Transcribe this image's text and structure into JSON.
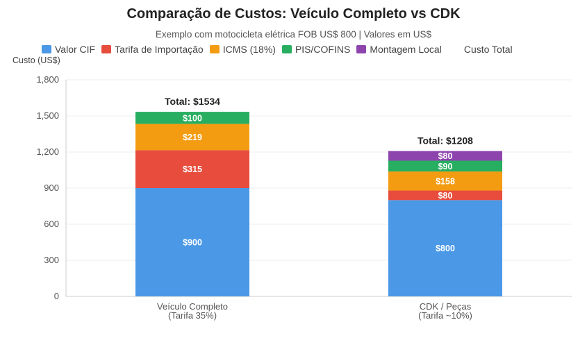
{
  "chart_data": {
    "type": "bar",
    "stacked": true,
    "title": "Comparação de Custos: Veículo Completo vs CDK",
    "subtitle": "Exemplo com motocicleta elétrica FOB US$ 800 | Valores em US$",
    "ylabel": "Custo (US$)",
    "ylim": [
      0,
      1800
    ],
    "yticks": [
      "0",
      "300",
      "600",
      "900",
      "1,200",
      "1,500",
      "1,800"
    ],
    "grid": true,
    "legend_position": "top",
    "categories": [
      [
        "Veículo Completo",
        "(Tarifa 35%)"
      ],
      [
        "CDK / Peças",
        "(Tarifa ~10%)"
      ]
    ],
    "series": [
      {
        "name": "Valor CIF",
        "color": "#4a98e6",
        "values": [
          900,
          800
        ],
        "labels": [
          "$900",
          "$800"
        ]
      },
      {
        "name": "Tarifa de Importação",
        "color": "#e74c3c",
        "values": [
          315,
          80
        ],
        "labels": [
          "$315",
          "$80"
        ]
      },
      {
        "name": "ICMS (18%)",
        "color": "#f39c12",
        "values": [
          219,
          158
        ],
        "labels": [
          "$219",
          "$158"
        ]
      },
      {
        "name": "PIS/COFINS",
        "color": "#27ae60",
        "values": [
          100,
          90
        ],
        "labels": [
          "$100",
          "$90"
        ]
      },
      {
        "name": "Montagem Local",
        "color": "#8e44ad",
        "values": [
          0,
          80
        ],
        "labels": [
          "",
          "$80"
        ]
      }
    ],
    "extra_legend": "Custo Total",
    "totals": [
      "Total: $1534",
      "Total: $1208"
    ]
  }
}
